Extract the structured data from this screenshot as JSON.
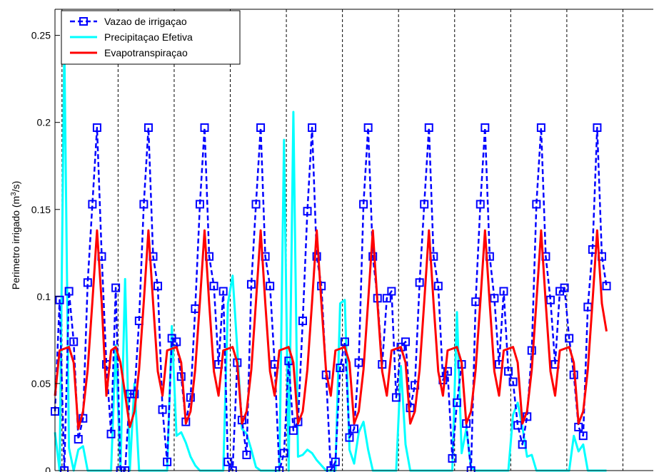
{
  "chart_data": {
    "type": "line",
    "title": "",
    "xlabel": "",
    "ylabel": "Perimetro irrigado (m³/s)",
    "ylabel_parts": {
      "pre": "Perimetro irrigado (m",
      "sup": "3",
      "post": "/s)"
    },
    "ylim": [
      0,
      0.265
    ],
    "xlim": [
      0,
      128
    ],
    "yticks": [
      0,
      0.05,
      0.1,
      0.15,
      0.2,
      0.25
    ],
    "ytick_labels": [
      "0",
      "0.05",
      "0.1",
      "0.15",
      "0.2",
      "0.25"
    ],
    "grid": false,
    "legend_position": "top-left",
    "period_boundaries": [
      1.5,
      13.5,
      25.5,
      37.5,
      49.5,
      61.5,
      73.5,
      85.5,
      97.5,
      109.5,
      121.5
    ],
    "series": [
      {
        "name": "Vazao de irrigaçao",
        "color": "#0000ff",
        "style": "dashed-square",
        "values": [
          0.034,
          0.098,
          0.0,
          0.103,
          0.074,
          0.018,
          0.03,
          0.108,
          0.153,
          0.197,
          0.123,
          0.061,
          0.021,
          0.105,
          0.0,
          0.0,
          0.044,
          0.044,
          0.086,
          0.153,
          0.197,
          0.123,
          0.106,
          0.035,
          0.005,
          0.076,
          0.074,
          0.054,
          0.028,
          0.042,
          0.093,
          0.153,
          0.197,
          0.123,
          0.106,
          0.061,
          0.103,
          0.005,
          0.0,
          0.062,
          0.029,
          0.009,
          0.107,
          0.153,
          0.197,
          0.123,
          0.106,
          0.061,
          0.0,
          0.01,
          0.063,
          0.023,
          0.028,
          0.086,
          0.149,
          0.197,
          0.123,
          0.106,
          0.055,
          0.0,
          0.005,
          0.059,
          0.074,
          0.019,
          0.024,
          0.062,
          0.153,
          0.197,
          0.123,
          0.099,
          0.061,
          0.099,
          0.103,
          0.042,
          0.071,
          0.074,
          0.036,
          0.049,
          0.108,
          0.153,
          0.197,
          0.123,
          0.106,
          0.052,
          0.057,
          0.007,
          0.039,
          0.061,
          0.027,
          0.0,
          0.097,
          0.153,
          0.197,
          0.123,
          0.099,
          0.061,
          0.103,
          0.057,
          0.051,
          0.026,
          0.015,
          0.031,
          0.069,
          0.153,
          0.197,
          0.123,
          0.098,
          0.061,
          0.103,
          0.105,
          0.076,
          0.055,
          0.025,
          0.02,
          0.094,
          0.127,
          0.197,
          0.123,
          0.106
        ]
      },
      {
        "name": "Precipitaçao Efetiva",
        "color": "#00ffff",
        "style": "solid",
        "values": [
          0.022,
          0.0,
          0.244,
          0.013,
          0.0,
          0.012,
          0.014,
          0.0,
          0.0,
          0.0,
          0.0,
          0.0,
          0.0,
          0.072,
          0.0,
          0.11,
          0.0,
          0.05,
          0.0,
          0.0,
          0.0,
          0.0,
          0.0,
          0.0,
          0.0,
          0.083,
          0.02,
          0.022,
          0.016,
          0.008,
          0.003,
          0.0,
          0.0,
          0.0,
          0.0,
          0.0,
          0.0,
          0.096,
          0.112,
          0.07,
          0.024,
          0.021,
          0.012,
          0.002,
          0.0,
          0.0,
          0.0,
          0.0,
          0.0,
          0.19,
          0.0,
          0.206,
          0.008,
          0.009,
          0.012,
          0.01,
          0.006,
          0.003,
          0.0,
          0.0,
          0.0,
          0.096,
          0.098,
          0.012,
          0.004,
          0.022,
          0.028,
          0.012,
          0.0,
          0.0,
          0.0,
          0.0,
          0.0,
          0.0,
          0.06,
          0.015,
          0.0,
          0.0,
          0.0,
          0.0,
          0.0,
          0.0,
          0.0,
          0.0,
          0.0,
          0.0,
          0.091,
          0.01,
          0.024,
          0.002,
          0.0,
          0.0,
          0.0,
          0.0,
          0.0,
          0.0,
          0.0,
          0.0,
          0.032,
          0.039,
          0.025,
          0.008,
          0.009,
          0.0,
          0.0,
          0.0,
          0.0,
          0.0,
          0.0,
          0.0,
          0.0,
          0.02,
          0.011,
          0.015,
          0.0,
          0.0,
          0.0,
          0.0,
          0.0
        ]
      },
      {
        "name": "Evapotranspiraçao",
        "color": "#ff0000",
        "style": "solid",
        "values": [
          0.043,
          0.069,
          0.07,
          0.071,
          0.062,
          0.024,
          0.034,
          0.058,
          0.097,
          0.138,
          0.096,
          0.043,
          0.069,
          0.071,
          0.062,
          0.044,
          0.025,
          0.034,
          0.058,
          0.097,
          0.138,
          0.096,
          0.057,
          0.043,
          0.069,
          0.07,
          0.071,
          0.062,
          0.027,
          0.034,
          0.058,
          0.097,
          0.138,
          0.096,
          0.057,
          0.043,
          0.069,
          0.07,
          0.071,
          0.062,
          0.027,
          0.034,
          0.058,
          0.097,
          0.138,
          0.096,
          0.057,
          0.043,
          0.069,
          0.07,
          0.071,
          0.062,
          0.027,
          0.034,
          0.058,
          0.097,
          0.138,
          0.096,
          0.057,
          0.043,
          0.069,
          0.07,
          0.071,
          0.062,
          0.027,
          0.034,
          0.058,
          0.097,
          0.138,
          0.096,
          0.057,
          0.043,
          0.069,
          0.07,
          0.071,
          0.062,
          0.027,
          0.034,
          0.058,
          0.097,
          0.138,
          0.096,
          0.057,
          0.043,
          0.069,
          0.07,
          0.071,
          0.062,
          0.027,
          0.034,
          0.058,
          0.097,
          0.138,
          0.096,
          0.057,
          0.043,
          0.069,
          0.07,
          0.071,
          0.062,
          0.027,
          0.034,
          0.058,
          0.097,
          0.138,
          0.096,
          0.057,
          0.043,
          0.069,
          0.07,
          0.071,
          0.062,
          0.027,
          0.034,
          0.058,
          0.097,
          0.138,
          0.096,
          0.08
        ]
      }
    ]
  }
}
